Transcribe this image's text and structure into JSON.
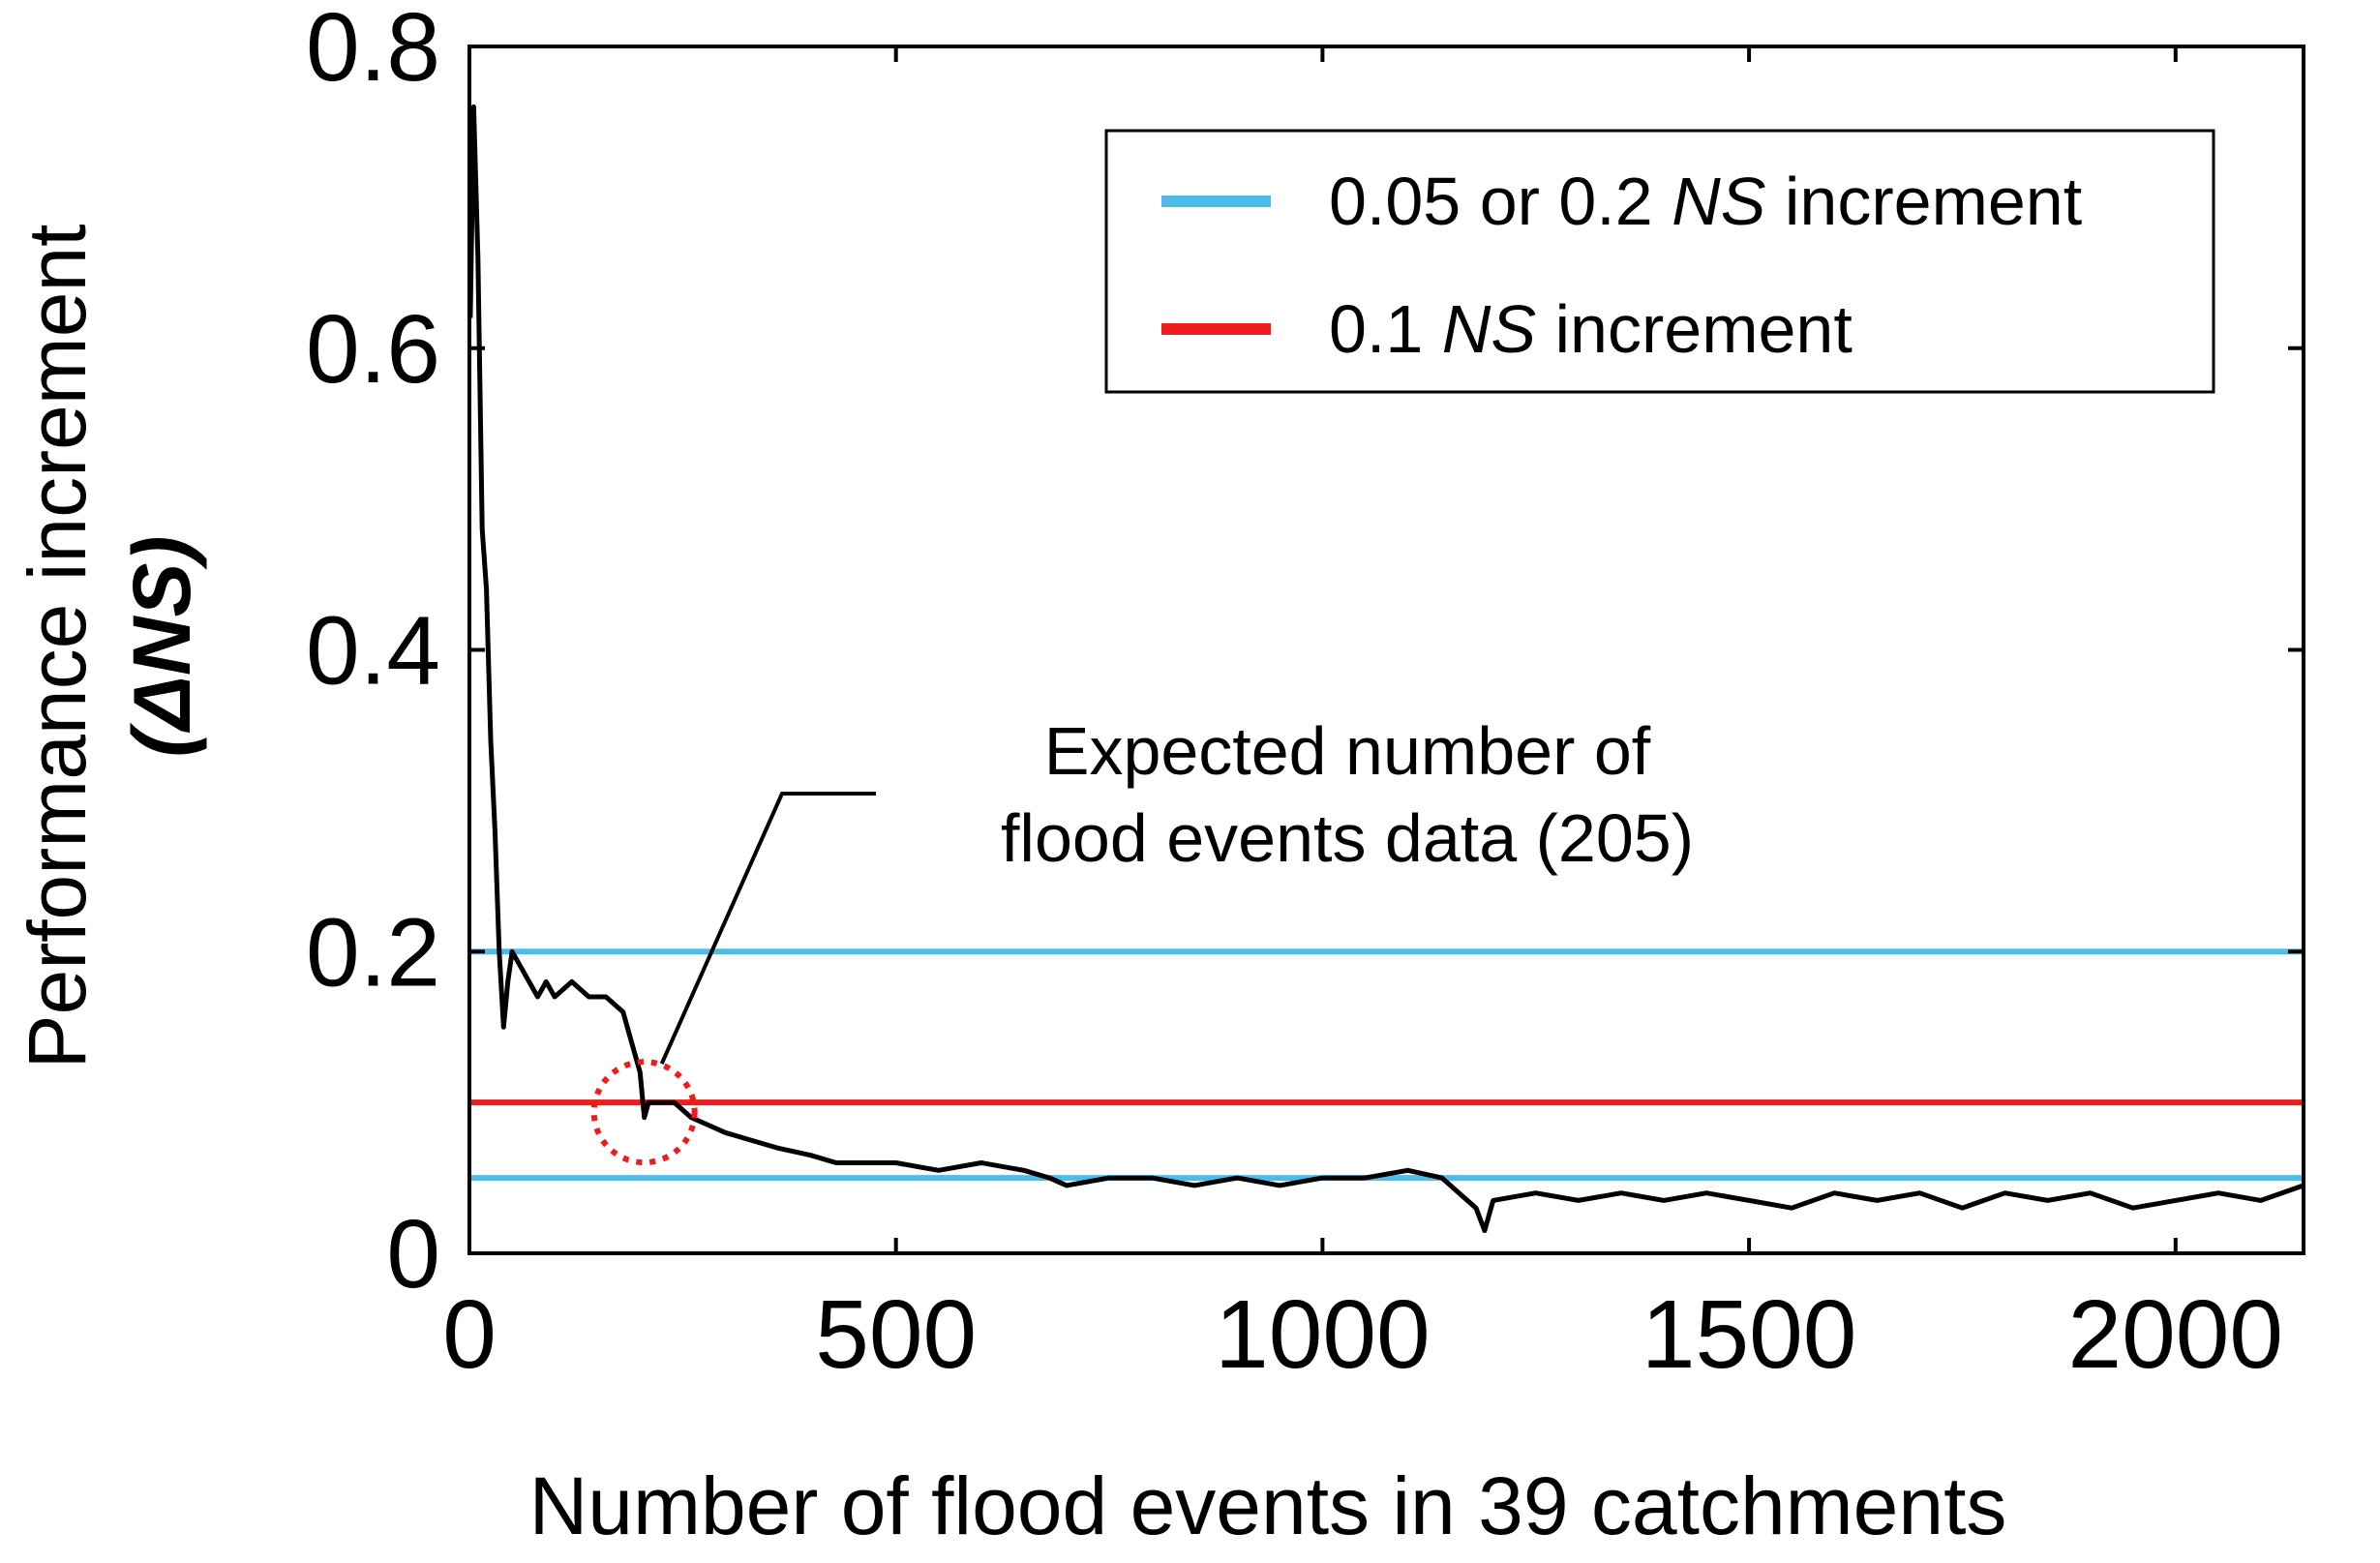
{
  "chart_data": {
    "type": "line",
    "title": "",
    "xlabel": "Number of flood events in 39 catchments",
    "ylabel": "Performance increment",
    "ylabel_line2": "(ΔNS)",
    "xlim": [
      0,
      2150
    ],
    "ylim": [
      0,
      0.8
    ],
    "xticks": [
      0,
      500,
      1000,
      1500,
      2000
    ],
    "xtick_labels": [
      "0",
      "500",
      "1000",
      "1500",
      "2000"
    ],
    "yticks": [
      0,
      0.2,
      0.4,
      0.6,
      0.8
    ],
    "ytick_labels": [
      "0",
      "0.2",
      "0.4",
      "0.6",
      "0.8"
    ],
    "grid": false,
    "legend_position": "top-right",
    "legend": [
      {
        "pre": "0.05 or 0.2 ",
        "ital": "NS",
        "post": " increment",
        "color": "#4dbde8"
      },
      {
        "pre": "0.1 ",
        "ital": "NS",
        "post": " increment",
        "color": "#ee1c1c"
      }
    ],
    "reference_lines": [
      {
        "y": 0.2,
        "color": "#4dbde8",
        "series": "0.05 or 0.2 NS increment"
      },
      {
        "y": 0.05,
        "color": "#4dbde8",
        "series": "0.05 or 0.2 NS increment"
      },
      {
        "y": 0.1,
        "color": "#ee1c1c",
        "series": "0.1 NS increment"
      }
    ],
    "series": [
      {
        "name": "Performance increment",
        "color": "#000000",
        "x": [
          1,
          5,
          10,
          15,
          20,
          25,
          30,
          35,
          40,
          45,
          50,
          60,
          70,
          80,
          90,
          100,
          120,
          140,
          160,
          180,
          190,
          200,
          205,
          210,
          220,
          240,
          260,
          280,
          300,
          330,
          360,
          400,
          430,
          460,
          500,
          550,
          600,
          650,
          680,
          700,
          750,
          800,
          850,
          900,
          950,
          1000,
          1050,
          1100,
          1140,
          1160,
          1180,
          1190,
          1200,
          1250,
          1300,
          1350,
          1400,
          1450,
          1500,
          1550,
          1600,
          1650,
          1700,
          1750,
          1800,
          1850,
          1900,
          1950,
          2000,
          2050,
          2100,
          2150
        ],
        "y": [
          0.62,
          0.76,
          0.66,
          0.48,
          0.44,
          0.34,
          0.28,
          0.2,
          0.15,
          0.18,
          0.2,
          0.19,
          0.18,
          0.17,
          0.18,
          0.17,
          0.18,
          0.17,
          0.17,
          0.16,
          0.14,
          0.12,
          0.09,
          0.1,
          0.1,
          0.1,
          0.09,
          0.085,
          0.08,
          0.075,
          0.07,
          0.065,
          0.06,
          0.06,
          0.06,
          0.055,
          0.06,
          0.055,
          0.05,
          0.045,
          0.05,
          0.05,
          0.045,
          0.05,
          0.045,
          0.05,
          0.05,
          0.055,
          0.05,
          0.04,
          0.03,
          0.015,
          0.035,
          0.04,
          0.035,
          0.04,
          0.035,
          0.04,
          0.035,
          0.03,
          0.04,
          0.035,
          0.04,
          0.03,
          0.04,
          0.035,
          0.04,
          0.03,
          0.035,
          0.04,
          0.035,
          0.045
        ]
      }
    ],
    "annotations": [
      {
        "text_lines": [
          "Expected number of",
          "flood events data (205)"
        ],
        "x": 205,
        "y": 0.1,
        "marker": "dotted-circle",
        "marker_color": "#ee1c1c"
      }
    ]
  }
}
